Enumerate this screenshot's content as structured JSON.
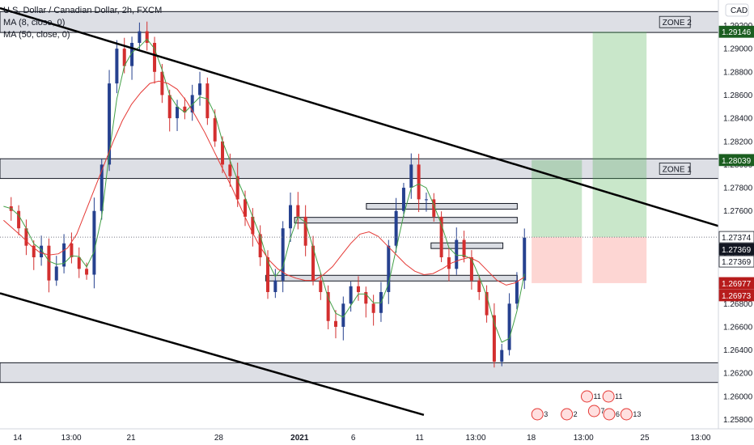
{
  "chart_data": {
    "type": "candlestick",
    "title": "U.S. Dollar / Canadian Dollar, 2h, FXCM",
    "indicators": [
      "MA (8, close, 0)",
      "MA (50, close, 0)"
    ],
    "currency": "CAD",
    "y_ticks": [
      "1.25800",
      "1.26000",
      "1.26200",
      "1.26400",
      "1.26600",
      "1.26800",
      "1.27000",
      "1.27200",
      "1.27400",
      "1.27600",
      "1.27800",
      "1.28000",
      "1.28200",
      "1.28400",
      "1.28600",
      "1.28800",
      "1.29000",
      "1.29200"
    ],
    "ylim": [
      1.2572,
      1.2942
    ],
    "x_ticks": [
      "14",
      "13:00",
      "21",
      "28",
      "2021",
      "6",
      "11",
      "13:00",
      "18",
      "13:00",
      "25",
      "13:00"
    ],
    "price_badges": [
      {
        "label": "1.29146",
        "value": 1.29146,
        "color": "#1b5e20"
      },
      {
        "label": "1.28039",
        "value": 1.28039,
        "color": "#1b5e20"
      },
      {
        "label": "1.27374",
        "value": 1.27374,
        "color": "#ffffff"
      },
      {
        "label": "1.27369",
        "value": 1.27369,
        "color": "#131722"
      },
      {
        "label": "1.27369",
        "value": 1.27369,
        "color": "#ffffff"
      },
      {
        "label": "1.26977",
        "value": 1.26977,
        "color": "#b71c1c"
      },
      {
        "label": "1.26973",
        "value": 1.26973,
        "color": "#b71c1c"
      }
    ],
    "zones": [
      {
        "label": "ZONE 2",
        "top": 1.2932,
        "bottom": 1.2914
      },
      {
        "label": "ZONE 1",
        "top": 1.2805,
        "bottom": 1.2788
      },
      {
        "label": "",
        "top": 1.2629,
        "bottom": 1.2612
      }
    ],
    "levels": [
      {
        "price": 1.2764,
        "x_from": 0.51,
        "x_to": 0.72
      },
      {
        "price": 1.2752,
        "x_from": 0.41,
        "x_to": 0.72
      },
      {
        "price": 1.273,
        "x_from": 0.6,
        "x_to": 0.7
      },
      {
        "price": 1.2702,
        "x_from": 0.37,
        "x_to": 0.72
      }
    ],
    "trendlines": [
      {
        "from": [
          0.0,
          1.2935
        ],
        "to": [
          1.0,
          1.2747
        ]
      },
      {
        "from": [
          0.0,
          1.2689
        ],
        "to": [
          0.59,
          1.2584
        ]
      }
    ],
    "position_long": {
      "entry": 1.27374,
      "target": 1.28039,
      "stop": 1.26977
    },
    "position_long_2": {
      "entry": 1.27374,
      "target": 1.29146,
      "stop": 1.26977
    },
    "events": [
      "3",
      "2",
      "11",
      "11",
      "7",
      "6",
      "13"
    ],
    "close_trend": [
      1.2764,
      1.276,
      1.2745,
      1.273,
      1.272,
      1.273,
      1.27,
      1.2712,
      1.2732,
      1.272,
      1.271,
      1.2705,
      1.276,
      1.28,
      1.287,
      1.29,
      1.2885,
      1.2905,
      1.2915,
      1.2905,
      1.288,
      1.286,
      1.284,
      1.285,
      1.2845,
      1.286,
      1.287,
      1.284,
      1.282,
      1.28,
      1.279,
      1.277,
      1.2755,
      1.274,
      1.272,
      1.269,
      1.27,
      1.2745,
      1.2765,
      1.2755,
      1.273,
      1.27,
      1.269,
      1.2665,
      1.266,
      1.268,
      1.2695,
      1.269,
      1.268,
      1.2672,
      1.269,
      1.273,
      1.276,
      1.278,
      1.28,
      1.277,
      1.277,
      1.2755,
      1.272,
      1.271,
      1.2735,
      1.272,
      1.27,
      1.269,
      1.267,
      1.263,
      1.264,
      1.268,
      1.27,
      1.2737
    ],
    "ma50_trend": [
      1.2752,
      1.2745,
      1.2738,
      1.273,
      1.2724,
      1.2722,
      1.2723,
      1.2728,
      1.274,
      1.276,
      1.278,
      1.28,
      1.282,
      1.2838,
      1.2852,
      1.2862,
      1.287,
      1.2872,
      1.287,
      1.2865,
      1.2855,
      1.2842,
      1.2828,
      1.2812,
      1.2796,
      1.278,
      1.2762,
      1.2745,
      1.273,
      1.2718,
      1.271,
      1.2705,
      1.2702,
      1.27,
      1.27,
      1.2705,
      1.2712,
      1.2722,
      1.2732,
      1.274,
      1.2742,
      1.2738,
      1.273,
      1.2722,
      1.2714,
      1.2708,
      1.2705,
      1.2706,
      1.271,
      1.2715,
      1.2718,
      1.272,
      1.2716,
      1.2708,
      1.27,
      1.2696,
      1.2698,
      1.2703
    ]
  }
}
